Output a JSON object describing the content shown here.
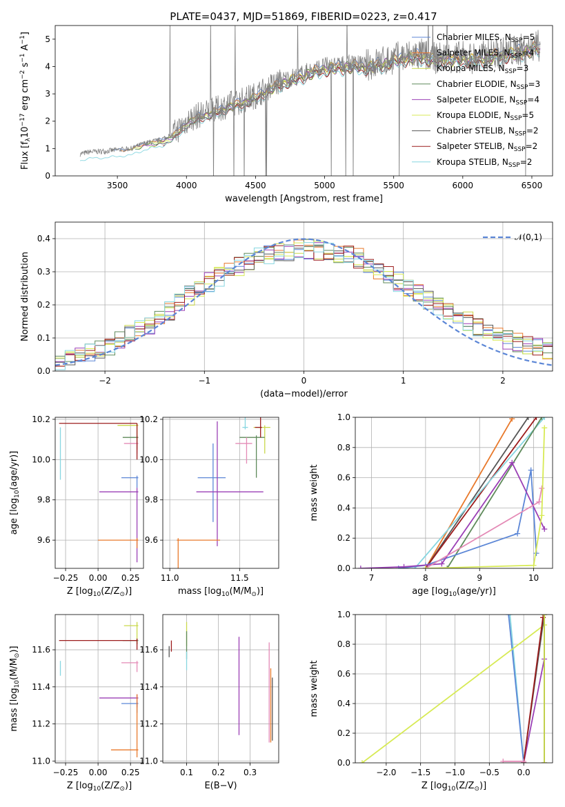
{
  "title": "PLATE=0437, MJD=51869, FIBERID=0223, z=0.417",
  "colors": {
    "blue": "#5b86d6",
    "orange": "#e8782a",
    "yellow": "#c9d84a",
    "green": "#5e8a5a",
    "purple": "#9a3fb5",
    "lime": "#d7ea54",
    "gray": "#555555",
    "red": "#9b1b1b",
    "cyan": "#86d6e0",
    "pink": "#e48ab6",
    "dashed": "#5b86d6"
  },
  "chart_data": [
    {
      "id": "spectrum",
      "type": "line",
      "xlabel": "wavelength [Angstrom, rest frame]",
      "ylabel": "Flux [f$_\\lambda$10$^{-17}$ erg cm$^{-2}$ s$^{-1}$ A$^{-1}$]",
      "xlim": [
        3050,
        6650
      ],
      "ylim": [
        0,
        5.5
      ],
      "xticks": [
        3500,
        4000,
        4500,
        5000,
        5500,
        6000,
        6500
      ],
      "yticks": [
        0,
        1,
        2,
        3,
        4,
        5
      ],
      "legend_position": "top-right",
      "continuum_x": [
        3230,
        3300,
        3400,
        3500,
        3600,
        3700,
        3800,
        3900,
        4000,
        4100,
        4200,
        4300,
        4400,
        4500,
        4600,
        4700,
        4800,
        4900,
        5000,
        5100,
        5200,
        5300,
        5400,
        5500,
        5600,
        5700,
        5800,
        5900,
        6000,
        6100,
        6200,
        6300,
        6400,
        6500,
        6550
      ],
      "continuum_y": [
        0.8,
        0.88,
        0.9,
        0.95,
        1.0,
        1.2,
        1.3,
        1.5,
        2.0,
        2.25,
        2.4,
        2.6,
        2.75,
        2.95,
        3.25,
        3.5,
        3.65,
        3.85,
        4.0,
        4.05,
        4.1,
        4.05,
        4.15,
        4.3,
        4.4,
        4.45,
        4.3,
        4.35,
        4.35,
        4.3,
        4.45,
        4.5,
        4.6,
        4.7,
        4.75
      ],
      "series": [
        {
          "name": "Chabrier MILES, N$_{SSP}$=5",
          "color": "#5b86d6"
        },
        {
          "name": "Salpeter MILES, N$_{SSP}$=4",
          "color": "#e8782a"
        },
        {
          "name": "Kroupa MILES, N$_{SSP}$=3",
          "color": "#c9d84a"
        },
        {
          "name": "Chabrier ELODIE, N$_{SSP}$=3",
          "color": "#5e8a5a"
        },
        {
          "name": "Salpeter ELODIE, N$_{SSP}$=4",
          "color": "#9a3fb5"
        },
        {
          "name": "Kroupa ELODIE, N$_{SSP}$=5",
          "color": "#d7ea54"
        },
        {
          "name": "Chabrier STELIB, N$_{SSP}$=2",
          "color": "#555555"
        },
        {
          "name": "Salpeter STELIB, N$_{SSP}$=2",
          "color": "#9b1b1b"
        },
        {
          "name": "Kroupa STELIB, N$_{SSP}$=2",
          "color": "#86d6e0"
        }
      ]
    },
    {
      "id": "residuals",
      "type": "line",
      "xlabel": "(data-model)/error",
      "ylabel": "Normed distribution",
      "xlim": [
        -2.5,
        2.5
      ],
      "ylim": [
        0,
        0.45
      ],
      "xticks": [
        -2,
        -1,
        0,
        1,
        2
      ],
      "yticks": [
        0.0,
        0.1,
        0.2,
        0.3,
        0.4
      ],
      "legend": "$\\mathcal{N}(0,1)$",
      "legend_position": "top-right",
      "grid": true,
      "bin_width": 0.1,
      "histogram_profile": {
        "x": [
          -2.5,
          -2.0,
          -1.5,
          -1.0,
          -0.5,
          0.0,
          0.5,
          1.0,
          1.5,
          2.0,
          2.5
        ],
        "y": [
          0.03,
          0.07,
          0.15,
          0.26,
          0.34,
          0.37,
          0.35,
          0.26,
          0.17,
          0.1,
          0.06
        ]
      },
      "histogram_series_colors": [
        "#5b86d6",
        "#e8782a",
        "#c9d84a",
        "#5e8a5a",
        "#9a3fb5",
        "#d7ea54",
        "#555555",
        "#9b1b1b",
        "#86d6e0"
      ]
    },
    {
      "id": "age-vs-Z",
      "type": "scatter",
      "xlabel": "Z [log$_{10}$(Z/Z$_\\odot$)]",
      "ylabel": "age  [log$_{10}$(age/yr)]",
      "xlim": [
        -0.33,
        0.35
      ],
      "ylim": [
        9.46,
        10.21
      ],
      "xticks": [
        -0.25,
        0.0,
        0.25
      ],
      "xtick_labels": [
        "−0.25",
        "0.00",
        "0.25"
      ],
      "yticks": [
        9.6,
        9.8,
        10.0,
        10.2
      ],
      "yticks_label": [
        "9.6",
        "9.8",
        "10.0",
        "10.2"
      ],
      "grid": true,
      "points": [
        {
          "x": 0.3,
          "y": 10.17,
          "xerr": [
            0.15,
            0.01
          ],
          "yerr": [
            0.07,
            0.01
          ],
          "color": "#c9d84a"
        },
        {
          "x": 0.3,
          "y": 10.11,
          "xerr": [
            0.11,
            0.01
          ],
          "yerr": [
            0.06,
            0.01
          ],
          "color": "#5e8a5a"
        },
        {
          "x": 0.3,
          "y": 10.08,
          "xerr": [
            0.1,
            0.01
          ],
          "yerr": [
            0.05,
            0.01
          ],
          "color": "#e48ab6"
        },
        {
          "x": 0.3,
          "y": 9.91,
          "xerr": [
            0.12,
            0.01
          ],
          "yerr": [
            0.05,
            0.01
          ],
          "color": "#5b86d6"
        },
        {
          "x": 0.3,
          "y": 9.84,
          "xerr": [
            0.29,
            0.01
          ],
          "yerr": [
            0.35,
            0.02
          ],
          "color": "#9a3fb5"
        },
        {
          "x": 0.3,
          "y": 9.6,
          "xerr": [
            0.3,
            0.01
          ],
          "yerr": [
            0.04,
            0.01
          ],
          "color": "#e8782a"
        },
        {
          "x": 0.3,
          "y": 10.18,
          "xerr": [
            0.6,
            0.0
          ],
          "yerr": [
            0.18,
            0.0
          ],
          "color": "#9b1b1b"
        },
        {
          "x": -0.29,
          "y": 10.16,
          "xerr": [
            0.0,
            0.0
          ],
          "yerr": [
            0.26,
            0.0
          ],
          "color": "#86d6e0"
        }
      ]
    },
    {
      "id": "age-vs-mass",
      "type": "scatter",
      "xlabel": "mass [log$_{10}$(M/M$_\\odot$)]",
      "xlim": [
        10.95,
        11.78
      ],
      "ylim": [
        9.46,
        10.21
      ],
      "xticks": [
        11.0,
        11.5
      ],
      "xtick_labels": [
        "11.0",
        "11.5"
      ],
      "yticks": [
        9.6,
        9.8,
        10.0,
        10.2
      ],
      "ytick_labels": [
        "9.6",
        "9.8",
        "10.0",
        "10.2"
      ],
      "grid": true,
      "points": [
        {
          "x": 11.68,
          "y": 10.16,
          "xerr": [
            0.08,
            0.04
          ],
          "yerr": [
            0.13,
            0.01
          ],
          "color": "#c9d84a"
        },
        {
          "x": 11.62,
          "y": 10.11,
          "xerr": [
            0.12,
            0.06
          ],
          "yerr": [
            0.2,
            0.01
          ],
          "color": "#5e8a5a"
        },
        {
          "x": 11.55,
          "y": 10.08,
          "xerr": [
            0.08,
            0.04
          ],
          "yerr": [
            0.1,
            0.03
          ],
          "color": "#e48ab6"
        },
        {
          "x": 11.31,
          "y": 9.91,
          "xerr": [
            0.11,
            0.09
          ],
          "yerr": [
            0.22,
            0.17
          ],
          "color": "#5b86d6"
        },
        {
          "x": 11.34,
          "y": 9.84,
          "xerr": [
            0.15,
            0.33
          ],
          "yerr": [
            0.27,
            0.35
          ],
          "color": "#9a3fb5"
        },
        {
          "x": 11.06,
          "y": 9.6,
          "xerr": [
            0.01,
            0.3
          ],
          "yerr": [
            0.55,
            0.01
          ],
          "color": "#e8782a"
        },
        {
          "x": 11.65,
          "y": 10.16,
          "xerr": [
            0.04,
            0.01
          ],
          "yerr": [
            0.05,
            0.26
          ],
          "color": "#9b1b1b"
        },
        {
          "x": 11.54,
          "y": 10.16,
          "xerr": [
            0.02,
            0.02
          ],
          "yerr": [
            0.01,
            0.27
          ],
          "color": "#86d6e0"
        }
      ]
    },
    {
      "id": "mass-weight-vs-age",
      "type": "line",
      "xlabel": "age  [log$_{10}$(age/yr)]",
      "ylabel": "mass weight",
      "xlim": [
        6.7,
        10.35
      ],
      "ylim": [
        0,
        1
      ],
      "xticks": [
        7,
        8,
        9,
        10
      ],
      "yticks": [
        0.0,
        0.2,
        0.4,
        0.6,
        0.8,
        1.0
      ],
      "grid": true,
      "series": [
        {
          "color": "#e8782a",
          "x": [
            8.0,
            9.6
          ],
          "y": [
            0.0,
            0.99
          ]
        },
        {
          "color": "#555555",
          "x": [
            8.0,
            9.9
          ],
          "y": [
            0.0,
            1.0
          ]
        },
        {
          "color": "#9b1b1b",
          "x": [
            8.0,
            10.05
          ],
          "y": [
            0.0,
            1.0
          ]
        },
        {
          "color": "#86d6e0",
          "x": [
            7.8,
            10.2
          ],
          "y": [
            0.0,
            1.0
          ]
        },
        {
          "color": "#5e8a5a",
          "x": [
            8.4,
            10.15
          ],
          "y": [
            0.0,
            1.0
          ]
        },
        {
          "color": "#5b86d6",
          "x": [
            7.5,
            8.0,
            9.7,
            9.95,
            10.05
          ],
          "y": [
            0.0,
            0.02,
            0.23,
            0.65,
            0.1
          ]
        },
        {
          "color": "#9a3fb5",
          "x": [
            6.8,
            7.6,
            8.3,
            9.6,
            10.2
          ],
          "y": [
            0.0,
            0.01,
            0.03,
            0.7,
            0.26
          ]
        },
        {
          "color": "#e48ab6",
          "x": [
            8.0,
            10.1,
            10.15
          ],
          "y": [
            0.0,
            0.44,
            0.53
          ]
        },
        {
          "color": "#d7ea54",
          "x": [
            8.0,
            10.0,
            10.15,
            10.2
          ],
          "y": [
            0.0,
            0.02,
            0.35,
            0.93
          ]
        }
      ]
    },
    {
      "id": "mass-vs-Z",
      "type": "scatter",
      "xlabel": "Z [log$_{10}$(Z/Z$_\\odot$)]",
      "ylabel": "mass [log$_{10}$(M/M$_\\odot$)]",
      "xlim": [
        -0.33,
        0.35
      ],
      "ylim": [
        10.99,
        11.79
      ],
      "xticks": [
        -0.25,
        0.0,
        0.25
      ],
      "xtick_labels": [
        "−0.25",
        "0.00",
        "0.25"
      ],
      "yticks": [
        11.0,
        11.2,
        11.4,
        11.6
      ],
      "ytick_labels": [
        "11.0",
        "11.2",
        "11.4",
        "11.6"
      ],
      "grid": true,
      "points": [
        {
          "x": 0.3,
          "y": 11.73,
          "xerr": [
            0.1,
            0.01
          ],
          "yerr": [
            0.1,
            0.02
          ],
          "color": "#c9d84a"
        },
        {
          "x": 0.3,
          "y": 11.65,
          "xerr": [
            0.11,
            0.01
          ],
          "yerr": [
            0.02,
            0.01
          ],
          "color": "#5e8a5a"
        },
        {
          "x": 0.3,
          "y": 11.53,
          "xerr": [
            0.12,
            0.01
          ],
          "yerr": [
            0.05,
            0.01
          ],
          "color": "#e48ab6"
        },
        {
          "x": 0.3,
          "y": 11.31,
          "xerr": [
            0.12,
            0.01
          ],
          "yerr": [
            0.05,
            0.01
          ],
          "color": "#5b86d6"
        },
        {
          "x": 0.3,
          "y": 11.34,
          "xerr": [
            0.29,
            0.01
          ],
          "yerr": [
            0.05,
            0.02
          ],
          "color": "#9a3fb5"
        },
        {
          "x": 0.3,
          "y": 11.06,
          "xerr": [
            0.2,
            0.01
          ],
          "yerr": [
            0.04,
            0.3
          ],
          "color": "#e8782a"
        },
        {
          "x": 0.3,
          "y": 11.65,
          "xerr": [
            0.6,
            0.0
          ],
          "yerr": [
            0.05,
            0.01
          ],
          "color": "#9b1b1b"
        },
        {
          "x": -0.29,
          "y": 11.5,
          "xerr": [
            0.0,
            0.0
          ],
          "yerr": [
            0.04,
            0.04
          ],
          "color": "#86d6e0"
        }
      ]
    },
    {
      "id": "mass-vs-EBV",
      "type": "scatter",
      "xlabel": "E(B-V)",
      "xlim": [
        0.025,
        0.39
      ],
      "ylim": [
        10.99,
        11.79
      ],
      "xticks": [
        0.1,
        0.2,
        0.3
      ],
      "xtick_labels": [
        "0.1",
        "0.2",
        "0.3"
      ],
      "yticks": [
        11.0,
        11.2,
        11.4,
        11.6
      ],
      "ytick_labels": [
        "11.0",
        "11.2",
        "11.4",
        "11.6"
      ],
      "grid": true,
      "points": [
        {
          "x": 0.1,
          "y": 11.72,
          "yerr": [
            0.1,
            0.03
          ],
          "color": "#c9d84a"
        },
        {
          "x": 0.1,
          "y": 11.65,
          "yerr": [
            0.1,
            0.05
          ],
          "color": "#5e8a5a"
        },
        {
          "x": 0.1,
          "y": 11.55,
          "yerr": [
            0.06,
            0.04
          ],
          "color": "#86d6e0"
        },
        {
          "x": 0.265,
          "y": 11.4,
          "yerr": [
            0.26,
            0.27
          ],
          "color": "#9a3fb5"
        },
        {
          "x": 0.36,
          "y": 11.4,
          "yerr": [
            0.3,
            0.24
          ],
          "color": "#e48ab6"
        },
        {
          "x": 0.365,
          "y": 11.25,
          "yerr": [
            0.15,
            0.25
          ],
          "color": "#e8782a"
        },
        {
          "x": 0.37,
          "y": 11.25,
          "yerr": [
            0.14,
            0.2
          ],
          "color": "#555555"
        },
        {
          "x": 0.045,
          "y": 11.6,
          "yerr": [
            0.04,
            0.02
          ],
          "color": "#555555"
        },
        {
          "x": 0.052,
          "y": 11.62,
          "yerr": [
            0.03,
            0.03
          ],
          "color": "#9b1b1b"
        }
      ]
    },
    {
      "id": "mass-weight-vs-Z",
      "type": "line",
      "xlabel": "Z [log$_{10}$(Z/Z$_\\odot$)]",
      "ylabel": "mass weight",
      "xlim": [
        -2.45,
        0.42
      ],
      "ylim": [
        0,
        1
      ],
      "xticks": [
        -2.0,
        -1.5,
        -1.0,
        -0.5,
        0.0
      ],
      "xtick_labels": [
        "−2.0",
        "−1.5",
        "−1.0",
        "−0.5",
        "0.0"
      ],
      "yticks": [
        0.0,
        0.2,
        0.4,
        0.6,
        0.8,
        1.0
      ],
      "grid": true,
      "series": [
        {
          "color": "#86d6e0",
          "x": [
            -0.2,
            0.0
          ],
          "y": [
            1.0,
            0.0
          ]
        },
        {
          "color": "#5b86d6",
          "x": [
            -0.22,
            0.0
          ],
          "y": [
            1.0,
            0.0
          ]
        },
        {
          "color": "#d7ea54",
          "x": [
            -2.35,
            0.3
          ],
          "y": [
            0.0,
            0.93
          ]
        },
        {
          "color": "#555555",
          "x": [
            0.0,
            0.3
          ],
          "y": [
            0.0,
            1.0
          ]
        },
        {
          "color": "#9a3fb5",
          "x": [
            0.0,
            0.3
          ],
          "y": [
            0.0,
            0.7
          ]
        },
        {
          "color": "#9b1b1b",
          "x": [
            0.0,
            0.28
          ],
          "y": [
            0.0,
            0.98
          ]
        },
        {
          "color": "#e48ab6",
          "x": [
            -0.3,
            0.0
          ],
          "y": [
            0.01,
            0.01
          ]
        },
        {
          "color": "#e8782a",
          "x": [
            0.3,
            0.3
          ],
          "y": [
            0.0,
            1.0
          ]
        },
        {
          "color": "#5e8a5a",
          "x": [
            0.3,
            0.3
          ],
          "y": [
            0.0,
            1.0
          ]
        },
        {
          "color": "#c9d84a",
          "x": [
            0.3,
            0.3
          ],
          "y": [
            0.0,
            1.0
          ]
        }
      ]
    }
  ]
}
